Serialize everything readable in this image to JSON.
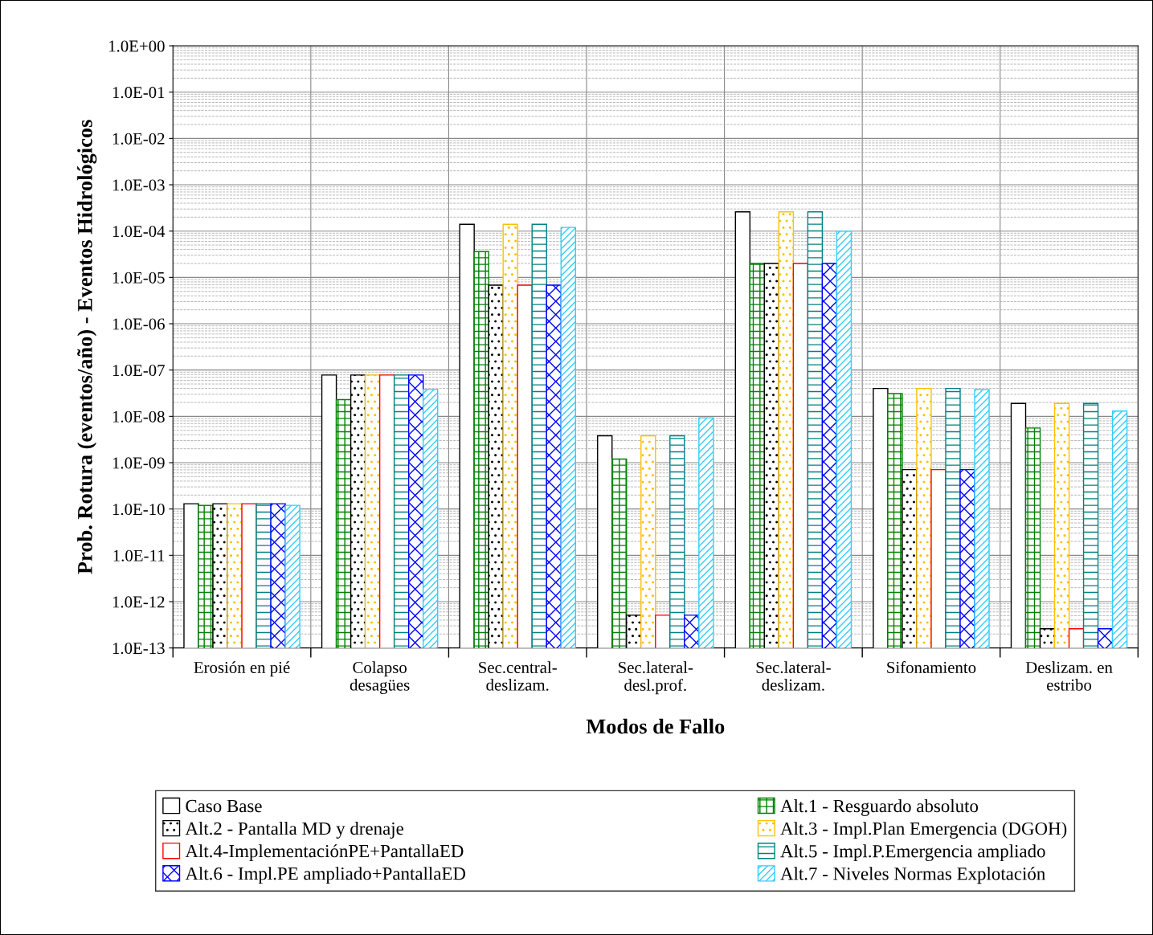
{
  "chart_data": {
    "type": "bar",
    "xlabel": "Modos de Fallo",
    "ylabel": "Prob. Rotura (eventos/año) - Eventos Hidrológicos",
    "categories": [
      "Erosión en pié",
      "Colapso\ndesagües",
      "Sec.central-\ndeslizam.",
      "Sec.lateral-\ndesl.prof.",
      "Sec.lateral-\ndeslizam.",
      "Sifonamiento",
      "Deslizam. en\nestribo"
    ],
    "series": [
      {
        "name": "Caso Base",
        "color": "#ffffff",
        "values": [
          1.3e-10,
          7.8e-08,
          0.00014,
          3.8e-09,
          0.00026,
          4e-08,
          1.9e-08
        ]
      },
      {
        "name": "Alt.1 - Resguardo absoluto",
        "color": "#008000",
        "values": [
          1.2e-10,
          2.3e-08,
          3.6e-05,
          1.2e-09,
          2e-05,
          3.1e-08,
          5.6e-09
        ]
      },
      {
        "name": "Alt.2 - Pantalla MD y drenaje",
        "color": "#000000",
        "values": [
          1.3e-10,
          7.8e-08,
          6.8e-06,
          5.1e-13,
          2e-05,
          7.1e-10,
          2.6e-13
        ]
      },
      {
        "name": "Alt.3 - Impl.Plan Emergencia (DGOH)",
        "color": "#ffc000",
        "values": [
          1.3e-10,
          7.8e-08,
          0.00014,
          3.8e-09,
          0.00026,
          4e-08,
          1.9e-08
        ]
      },
      {
        "name": "Alt.4-ImplementaciónPE+PantallaED",
        "color": "#ff0000",
        "values": [
          1.3e-10,
          7.8e-08,
          6.8e-06,
          5.1e-13,
          2e-05,
          7.1e-10,
          2.6e-13
        ]
      },
      {
        "name": "Alt.5 - Impl.P.Emergencia ampliado",
        "color": "#008080",
        "values": [
          1.3e-10,
          7.8e-08,
          0.00014,
          3.8e-09,
          0.00026,
          4e-08,
          1.9e-08
        ]
      },
      {
        "name": "Alt.6 - Impl.PE ampliado+PantallaED",
        "color": "#0000ff",
        "values": [
          1.3e-10,
          7.8e-08,
          6.8e-06,
          5.1e-13,
          2e-05,
          7.1e-10,
          2.6e-13
        ]
      },
      {
        "name": "Alt.7 - Niveles Normas Explotación",
        "color": "#33ccff",
        "values": [
          1.2e-10,
          3.8e-08,
          0.00012,
          9.3e-09,
          0.0001,
          3.8e-08,
          1.3e-08
        ]
      }
    ],
    "log": true,
    "ylim": [
      1e-13,
      1
    ],
    "yticks": [
      {
        "value": 1e-13,
        "label": "1.0E-13"
      },
      {
        "value": 1e-12,
        "label": "1.0E-12"
      },
      {
        "value": 1e-11,
        "label": "1.0E-11"
      },
      {
        "value": 1e-10,
        "label": "1.0E-10"
      },
      {
        "value": 1e-09,
        "label": "1.0E-09"
      },
      {
        "value": 1e-08,
        "label": "1.0E-08"
      },
      {
        "value": 1e-07,
        "label": "1.0E-07"
      },
      {
        "value": 1e-06,
        "label": "1.0E-06"
      },
      {
        "value": 1e-05,
        "label": "1.0E-05"
      },
      {
        "value": 0.0001,
        "label": "1.0E-04"
      },
      {
        "value": 0.001,
        "label": "1.0E-03"
      },
      {
        "value": 0.01,
        "label": "1.0E-02"
      },
      {
        "value": 0.1,
        "label": "1.0E-01"
      },
      {
        "value": 1,
        "label": "1.0E+00"
      }
    ],
    "grid": true,
    "legend": "bottom"
  }
}
